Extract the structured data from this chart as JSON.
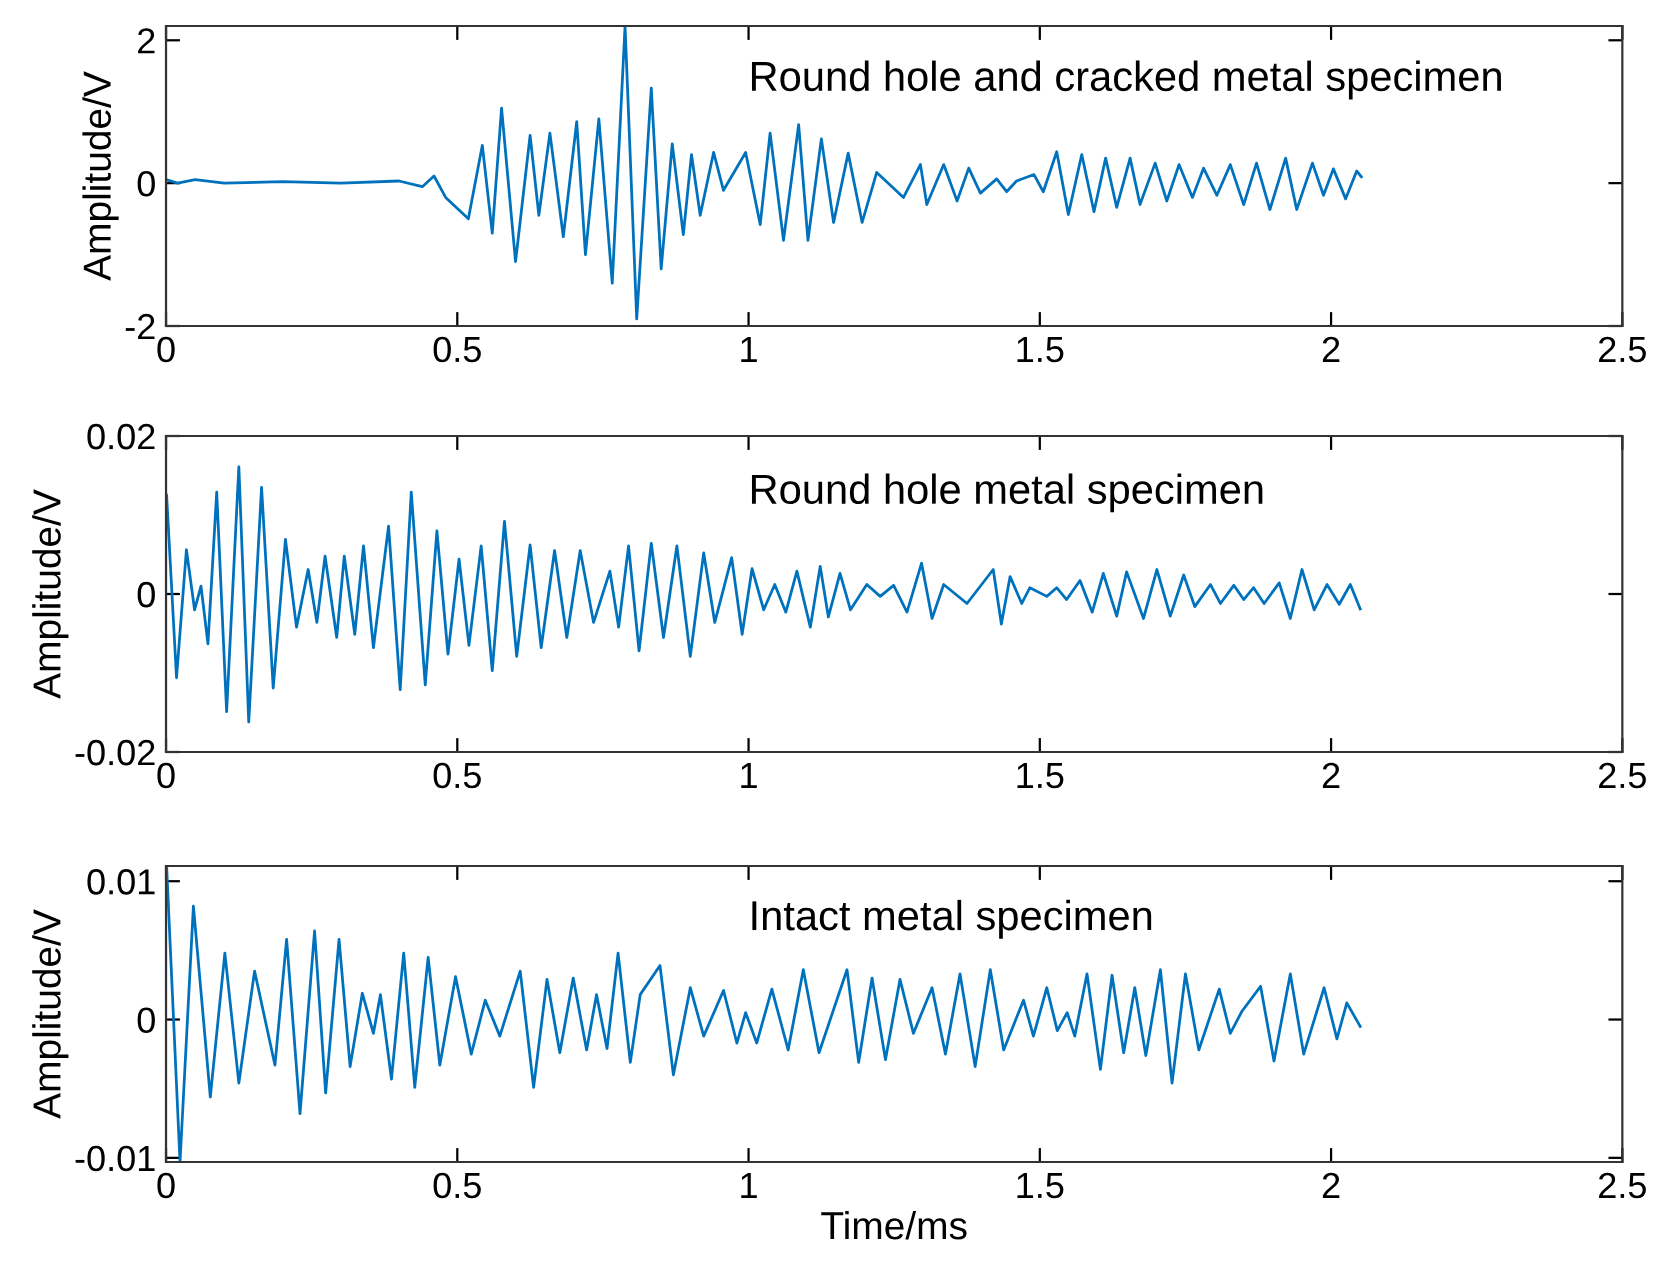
{
  "chart_data": [
    {
      "type": "line",
      "ylabel": "Amplitude/V",
      "annotations": [
        "Round hole and cracked metal specimen"
      ],
      "xlim": [
        0,
        2.5
      ],
      "xticks": [
        0,
        0.5,
        1,
        1.5,
        2,
        2.5
      ],
      "ylim": [
        -2,
        2.2
      ],
      "yticks": [
        -2,
        0,
        2
      ],
      "grid": false,
      "legend": false,
      "marker": "none",
      "line_style": "solid",
      "tick_labels": "xy",
      "series": [
        {
          "color": "#0072bd",
          "x": [
            0,
            0.02,
            0.05,
            0.1,
            0.2,
            0.3,
            0.4,
            0.44,
            0.46,
            0.48,
            0.519,
            0.543,
            0.56,
            0.576,
            0.6,
            0.625,
            0.64,
            0.659,
            0.682,
            0.705,
            0.72,
            0.743,
            0.766,
            0.788,
            0.808,
            0.833,
            0.85,
            0.869,
            0.888,
            0.902,
            0.917,
            0.94,
            0.957,
            0.995,
            1.02,
            1.037,
            1.06,
            1.086,
            1.102,
            1.125,
            1.146,
            1.171,
            1.195,
            1.22,
            1.266,
            1.295,
            1.306,
            1.335,
            1.358,
            1.378,
            1.398,
            1.426,
            1.443,
            1.46,
            1.49,
            1.506,
            1.529,
            1.549,
            1.572,
            1.593,
            1.613,
            1.632,
            1.655,
            1.672,
            1.698,
            1.718,
            1.739,
            1.762,
            1.781,
            1.804,
            1.827,
            1.85,
            1.872,
            1.895,
            1.922,
            1.941,
            1.968,
            1.987,
            2.004,
            2.025,
            2.044,
            2.052
          ],
          "values": [
            0.05,
            0.0,
            0.05,
            0.0,
            0.02,
            0.0,
            0.03,
            -0.05,
            0.1,
            -0.2,
            -0.5,
            0.53,
            -0.7,
            1.05,
            -1.1,
            0.67,
            -0.45,
            0.7,
            -0.75,
            0.86,
            -1.0,
            0.9,
            -1.4,
            2.2,
            -1.9,
            1.33,
            -1.2,
            0.55,
            -0.72,
            0.4,
            -0.45,
            0.43,
            -0.1,
            0.43,
            -0.58,
            0.7,
            -0.8,
            0.82,
            -0.8,
            0.62,
            -0.55,
            0.42,
            -0.55,
            0.15,
            -0.2,
            0.26,
            -0.3,
            0.26,
            -0.25,
            0.21,
            -0.14,
            0.06,
            -0.12,
            0.03,
            0.12,
            -0.12,
            0.44,
            -0.44,
            0.4,
            -0.4,
            0.35,
            -0.34,
            0.35,
            -0.3,
            0.28,
            -0.25,
            0.26,
            -0.2,
            0.21,
            -0.17,
            0.26,
            -0.3,
            0.28,
            -0.37,
            0.35,
            -0.37,
            0.28,
            -0.17,
            0.2,
            -0.22,
            0.17,
            0.09
          ]
        }
      ]
    },
    {
      "type": "line",
      "ylabel": "Amplitude/V",
      "annotations": [
        "Round hole metal specimen"
      ],
      "xlim": [
        0,
        2.5
      ],
      "xticks": [
        0,
        0.5,
        1,
        1.5,
        2,
        2.5
      ],
      "ylim": [
        -0.02,
        0.02
      ],
      "yticks": [
        -0.02,
        0,
        0.02
      ],
      "grid": false,
      "legend": false,
      "marker": "none",
      "line_style": "solid",
      "tick_labels": "xy",
      "series": [
        {
          "color": "#0072bd",
          "x": [
            0.001,
            0.018,
            0.035,
            0.049,
            0.06,
            0.072,
            0.087,
            0.104,
            0.125,
            0.142,
            0.164,
            0.184,
            0.205,
            0.224,
            0.244,
            0.259,
            0.273,
            0.293,
            0.306,
            0.324,
            0.339,
            0.356,
            0.382,
            0.402,
            0.421,
            0.445,
            0.465,
            0.484,
            0.503,
            0.52,
            0.541,
            0.56,
            0.581,
            0.602,
            0.625,
            0.644,
            0.667,
            0.688,
            0.711,
            0.734,
            0.762,
            0.777,
            0.794,
            0.812,
            0.833,
            0.854,
            0.877,
            0.9,
            0.923,
            0.942,
            0.971,
            0.989,
            1.006,
            1.026,
            1.045,
            1.064,
            1.083,
            1.106,
            1.123,
            1.137,
            1.157,
            1.175,
            1.203,
            1.226,
            1.249,
            1.272,
            1.297,
            1.315,
            1.335,
            1.375,
            1.42,
            1.434,
            1.449,
            1.469,
            1.483,
            1.512,
            1.529,
            1.546,
            1.569,
            1.59,
            1.609,
            1.632,
            1.649,
            1.678,
            1.701,
            1.724,
            1.747,
            1.766,
            1.793,
            1.81,
            1.833,
            1.85,
            1.867,
            1.885,
            1.911,
            1.93,
            1.95,
            1.971,
            1.993,
            2.014,
            2.033,
            2.05
          ],
          "values": [
            0.0125,
            -0.0106,
            0.0056,
            -0.002,
            0.001,
            -0.0063,
            0.0129,
            -0.0149,
            0.0161,
            -0.0162,
            0.0135,
            -0.0119,
            0.0069,
            -0.0042,
            0.0031,
            -0.0036,
            0.0048,
            -0.0055,
            0.0048,
            -0.0051,
            0.0061,
            -0.0068,
            0.0086,
            -0.0121,
            0.0129,
            -0.0115,
            0.008,
            -0.0076,
            0.0044,
            -0.0065,
            0.0061,
            -0.0097,
            0.0092,
            -0.0079,
            0.0062,
            -0.0068,
            0.0055,
            -0.0055,
            0.0055,
            -0.0036,
            0.0029,
            -0.0042,
            0.0061,
            -0.0072,
            0.0064,
            -0.0055,
            0.0061,
            -0.0079,
            0.0052,
            -0.0036,
            0.0046,
            -0.0051,
            0.0032,
            -0.002,
            0.0012,
            -0.0023,
            0.0029,
            -0.0042,
            0.0035,
            -0.0029,
            0.0026,
            -0.002,
            0.0012,
            -0.0003,
            0.0011,
            -0.0023,
            0.0039,
            -0.0031,
            0.0012,
            -0.0012,
            0.0031,
            -0.0038,
            0.0022,
            -0.0012,
            0.0008,
            -0.0003,
            0.0008,
            -0.0007,
            0.0017,
            -0.0023,
            0.0026,
            -0.0028,
            0.0028,
            -0.0031,
            0.0031,
            -0.0028,
            0.0024,
            -0.0016,
            0.0012,
            -0.0012,
            0.0011,
            -0.0007,
            0.0008,
            -0.0012,
            0.0014,
            -0.0031,
            0.0031,
            -0.002,
            0.0012,
            -0.0013,
            0.0012,
            -0.0019
          ]
        }
      ]
    },
    {
      "type": "line",
      "xlabel": "Time/ms",
      "ylabel": "Amplitude/V",
      "annotations": [
        "Intact metal specimen"
      ],
      "xlim": [
        0,
        2.5
      ],
      "xticks": [
        0,
        0.5,
        1,
        1.5,
        2,
        2.5
      ],
      "ylim": [
        -0.0103,
        0.0111
      ],
      "yticks": [
        -0.01,
        0,
        0.01
      ],
      "grid": false,
      "legend": false,
      "marker": "none",
      "line_style": "solid",
      "tick_labels": "xy",
      "series": [
        {
          "color": "#0072bd",
          "x": [
            0.001,
            0.024,
            0.047,
            0.076,
            0.101,
            0.125,
            0.152,
            0.187,
            0.207,
            0.23,
            0.255,
            0.274,
            0.297,
            0.316,
            0.337,
            0.356,
            0.368,
            0.387,
            0.408,
            0.427,
            0.45,
            0.47,
            0.497,
            0.524,
            0.548,
            0.573,
            0.608,
            0.631,
            0.654,
            0.676,
            0.699,
            0.722,
            0.739,
            0.757,
            0.776,
            0.797,
            0.814,
            0.848,
            0.871,
            0.9,
            0.923,
            0.957,
            0.98,
            0.995,
            1.014,
            1.04,
            1.068,
            1.094,
            1.121,
            1.169,
            1.189,
            1.212,
            1.235,
            1.26,
            1.283,
            1.315,
            1.338,
            1.363,
            1.389,
            1.415,
            1.438,
            1.472,
            1.489,
            1.512,
            1.53,
            1.547,
            1.56,
            1.581,
            1.604,
            1.624,
            1.644,
            1.663,
            1.682,
            1.707,
            1.727,
            1.75,
            1.773,
            1.808,
            1.827,
            1.847,
            1.879,
            1.902,
            1.93,
            1.953,
            1.988,
            2.01,
            2.027,
            2.05
          ],
          "values": [
            0.0111,
            -0.0103,
            0.0082,
            -0.0056,
            0.0048,
            -0.0046,
            0.0035,
            -0.0033,
            0.0058,
            -0.0068,
            0.0064,
            -0.0053,
            0.0058,
            -0.0034,
            0.0019,
            -0.001,
            0.0018,
            -0.0043,
            0.0048,
            -0.0049,
            0.0045,
            -0.0033,
            0.0031,
            -0.0025,
            0.0014,
            -0.0012,
            0.0035,
            -0.0049,
            0.0029,
            -0.0024,
            0.003,
            -0.0022,
            0.0018,
            -0.0021,
            0.0048,
            -0.0031,
            0.0018,
            0.0039,
            -0.004,
            0.0023,
            -0.0012,
            0.0021,
            -0.0017,
            0.0005,
            -0.0017,
            0.0022,
            -0.0022,
            0.0036,
            -0.0024,
            0.0036,
            -0.0031,
            0.003,
            -0.0029,
            0.0029,
            -0.001,
            0.0023,
            -0.0025,
            0.0033,
            -0.0034,
            0.0036,
            -0.0022,
            0.0014,
            -0.0012,
            0.0023,
            -0.0008,
            0.0005,
            -0.0012,
            0.0033,
            -0.0036,
            0.0032,
            -0.0024,
            0.0023,
            -0.0026,
            0.0036,
            -0.0046,
            0.0033,
            -0.0022,
            0.0022,
            -0.001,
            0.0006,
            0.0024,
            -0.003,
            0.0033,
            -0.0025,
            0.0023,
            -0.0014,
            0.0012,
            -0.0005
          ]
        }
      ]
    }
  ]
}
